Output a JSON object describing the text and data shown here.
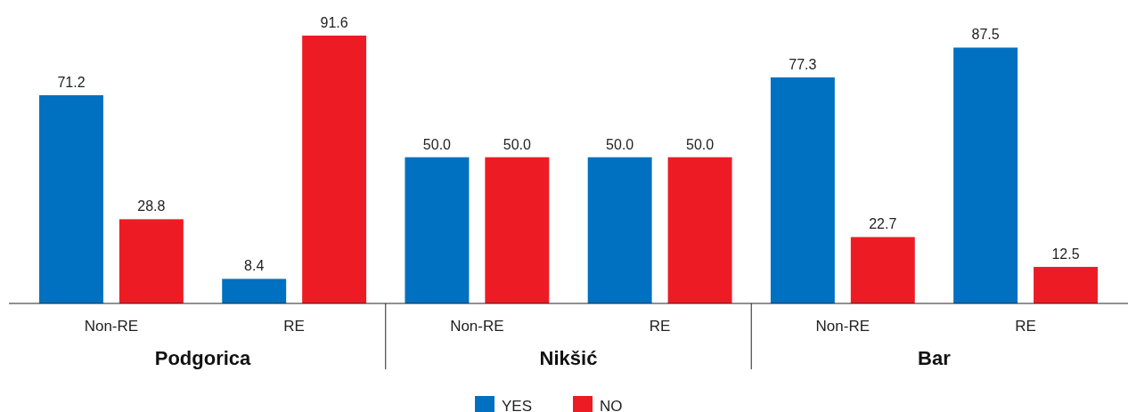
{
  "chart_data": {
    "type": "bar",
    "categories": [
      "Non-RE",
      "RE",
      "Non-RE",
      "RE",
      "Non-RE",
      "RE"
    ],
    "series": [
      {
        "name": "YES",
        "color": "#0070c0",
        "values": [
          71.2,
          8.4,
          50,
          50,
          77.3,
          87.5
        ],
        "value_labels": [
          "71.2",
          "8.4",
          "50.0",
          "50.0",
          "77.3",
          "87.5"
        ]
      },
      {
        "name": "NO",
        "color": "#ed1c24",
        "values": [
          28.8,
          91.6,
          50,
          50,
          22.7,
          12.5
        ],
        "value_labels": [
          "28.8",
          "91.6",
          "50.0",
          "50.0",
          "22.7",
          "12.5"
        ]
      }
    ],
    "annotations": [
      "Podgorica",
      "Nikšić",
      "Bar"
    ],
    "tick_labels": "x",
    "legend": "bottom"
  }
}
